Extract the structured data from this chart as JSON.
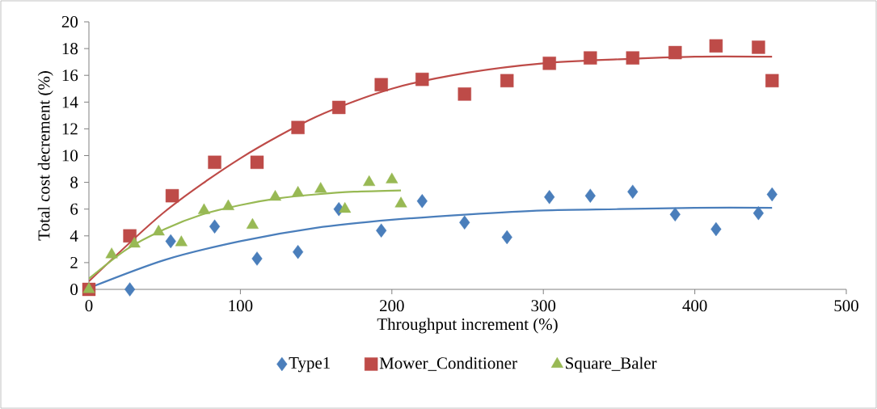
{
  "chart_data": {
    "type": "scatter",
    "xlabel": "Throughput increment (%)",
    "ylabel": "Total cost decrement (%)",
    "xlim": [
      0,
      500
    ],
    "xticks": [
      0,
      100,
      200,
      300,
      400,
      500
    ],
    "ylim": [
      0,
      20
    ],
    "yticks": [
      0,
      2,
      4,
      6,
      8,
      10,
      12,
      14,
      16,
      18,
      20
    ],
    "grid": false,
    "legend": "bottom",
    "series": [
      {
        "name": "Type1",
        "marker": "diamond",
        "color": "#4a7ebb",
        "x": [
          27,
          54,
          83,
          111,
          138,
          165,
          193,
          220,
          248,
          276,
          304,
          331,
          359,
          387,
          414,
          442,
          451
        ],
        "values": [
          0,
          3.6,
          4.7,
          2.3,
          2.8,
          6.0,
          4.4,
          6.6,
          5.0,
          3.9,
          6.9,
          7.0,
          7.3,
          5.6,
          4.5,
          5.7,
          7.1
        ]
      },
      {
        "name": "Mower_Conditioner",
        "marker": "square",
        "color": "#be4b48",
        "x": [
          0,
          27,
          55,
          83,
          111,
          138,
          165,
          193,
          220,
          248,
          276,
          304,
          331,
          359,
          387,
          414,
          442,
          451
        ],
        "values": [
          0,
          4.0,
          7.0,
          9.5,
          9.5,
          12.1,
          13.6,
          15.3,
          15.7,
          14.6,
          15.6,
          16.9,
          17.3,
          17.3,
          17.7,
          18.2,
          18.1,
          15.6
        ]
      },
      {
        "name": "Square_Baler",
        "marker": "triangle",
        "color": "#98b954",
        "x": [
          0,
          15,
          30,
          46,
          61,
          76,
          92,
          108,
          123,
          138,
          153,
          169,
          185,
          200,
          206
        ],
        "values": [
          0,
          2.6,
          3.4,
          4.3,
          3.5,
          5.9,
          6.2,
          4.8,
          6.9,
          7.2,
          7.5,
          6.0,
          8.0,
          8.2,
          6.4
        ]
      },
      {
        "type": "line",
        "marker": "none",
        "color": "#4a7ebb",
        "x": [
          0,
          50,
          100,
          150,
          200,
          250,
          300,
          350,
          400,
          451
        ],
        "values": [
          0.1,
          2.2,
          3.6,
          4.6,
          5.2,
          5.6,
          5.9,
          6.0,
          6.1,
          6.1
        ]
      },
      {
        "type": "line",
        "marker": "none",
        "color": "#be4b48",
        "x": [
          0,
          50,
          100,
          150,
          200,
          250,
          300,
          350,
          400,
          451
        ],
        "values": [
          0.6,
          5.8,
          9.8,
          12.9,
          15.0,
          16.2,
          16.9,
          17.2,
          17.4,
          17.4
        ]
      },
      {
        "type": "line",
        "marker": "none",
        "color": "#98b954",
        "x": [
          0,
          25,
          50,
          75,
          100,
          125,
          150,
          175,
          206
        ],
        "values": [
          0.8,
          3.0,
          4.5,
          5.6,
          6.3,
          6.8,
          7.1,
          7.3,
          7.4
        ]
      }
    ]
  }
}
